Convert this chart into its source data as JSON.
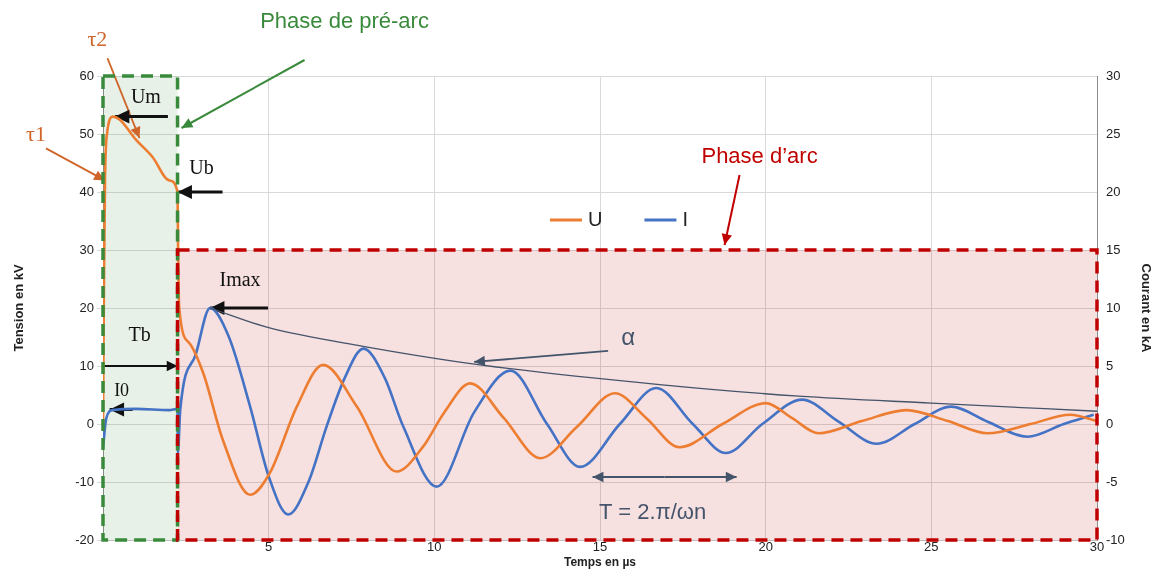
{
  "chart_data": {
    "type": "line",
    "xlabel": "Temps en µs",
    "ylabel": "Tension en kV",
    "y2label": "Courant en kA",
    "xlim": [
      0,
      30
    ],
    "xticks": [
      5,
      10,
      15,
      20,
      25,
      30
    ],
    "ylim": [
      -20,
      60
    ],
    "yticks": [
      -20,
      -10,
      0,
      10,
      20,
      30,
      40,
      50,
      60
    ],
    "y2lim": [
      -10,
      30
    ],
    "y2ticks": [
      -10,
      -5,
      0,
      5,
      10,
      15,
      20,
      25,
      30
    ],
    "grid": true,
    "legend": "top",
    "marker": "none",
    "line_style": "solid",
    "series": [
      {
        "name": "U",
        "color": "#ed7d31",
        "x": [
          0,
          0.03,
          0.06,
          0.12,
          0.3,
          0.5,
          1.0,
          1.5,
          2.0,
          2.25,
          2.27,
          2.3,
          2.6,
          3.03,
          3.62,
          4.44,
          5.04,
          5.85,
          6.64,
          7.66,
          8.86,
          9.66,
          10.3,
          11.08,
          12.1,
          13.2,
          14.3,
          15.45,
          16.4,
          17.4,
          18.7,
          20,
          20.8,
          21.6,
          22.9,
          24.25,
          25.5,
          26.7,
          28,
          29.2,
          30
        ],
        "values": [
          0,
          25,
          42,
          50,
          53,
          52.5,
          49,
          46,
          42,
          40,
          28,
          20,
          14,
          8.7,
          -2.8,
          -12.2,
          -8.4,
          3,
          10.2,
          3,
          -8.2,
          -3.9,
          2,
          7,
          1,
          -5.9,
          -0.5,
          5.3,
          1,
          -4,
          0,
          3.6,
          1,
          -1.6,
          0.5,
          2.4,
          0.5,
          -1.6,
          0,
          1.6,
          0.5
        ]
      },
      {
        "name": "I",
        "color": "#4472c4",
        "axis": "y2",
        "x": [
          0,
          0.1,
          0.3,
          1,
          2,
          2.25,
          2.26,
          2.33,
          2.8,
          3.23,
          3.8,
          4.44,
          5,
          5.59,
          6.2,
          6.75,
          7.3,
          7.86,
          8.5,
          9.06,
          10.07,
          11.2,
          12.3,
          13.4,
          14.4,
          15.6,
          16.7,
          17.8,
          18.8,
          19.9,
          21.1,
          22.2,
          23.35,
          24.5,
          25.6,
          26.7,
          27.9,
          29,
          29.9
        ],
        "values": [
          -2,
          0.5,
          1.2,
          1.3,
          1.2,
          1.3,
          -2.5,
          1.2,
          6,
          10,
          7.5,
          1.5,
          -4.5,
          -7.8,
          -5,
          -0.2,
          4,
          6.5,
          4,
          -0.2,
          -5.4,
          1,
          4.6,
          0,
          -3.7,
          0,
          3.1,
          0,
          -2.5,
          0,
          2.1,
          0.2,
          -1.7,
          0,
          1.5,
          0.2,
          -1.1,
          0,
          0.8
        ]
      },
      {
        "color": "#44546a",
        "axis": "y2",
        "x": [
          3.23,
          5,
          7.85,
          11.38,
          16.8,
          21,
          25,
          30
        ],
        "values": [
          10,
          8.3,
          6.7,
          5.1,
          3.4,
          2.4,
          1.8,
          1.1
        ]
      }
    ],
    "bands": [
      {
        "axis": "x",
        "from": 0,
        "to": 2.25,
        "label": "Phase de pré-arc",
        "color": "#3a8a3c"
      },
      {
        "axis": "y",
        "from": -20,
        "to": 30,
        "label": "Phase d’arc",
        "color": "#c00000"
      }
    ],
    "annotations": [
      {
        "text": "τ1",
        "x": 0.06,
        "y": 42
      },
      {
        "text": "τ2",
        "x": 1.1,
        "y": 49.3
      },
      {
        "text": "Um",
        "x": 0.36,
        "y": 53
      },
      {
        "text": "Ub",
        "x": 2.25,
        "y": 40
      },
      {
        "text": "Imax",
        "x": 3.23,
        "y": 20
      },
      {
        "text": "Tb",
        "x": 2.25,
        "y": 10
      },
      {
        "text": "I0",
        "x": 0.2,
        "y": 2.5
      },
      {
        "text": "α",
        "x": 11.2,
        "y": 10.7
      },
      "T = 2.π/ωn"
    ]
  }
}
